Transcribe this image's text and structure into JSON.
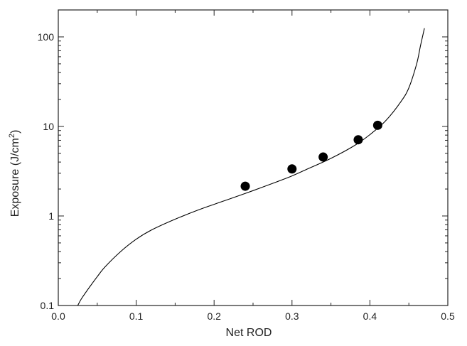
{
  "chart_data": {
    "type": "scatter",
    "xlabel": "Net ROD",
    "ylabel": {
      "prefix": "Exposure (J/cm",
      "superscript": "2",
      "suffix": ")"
    },
    "xlim": [
      0.0,
      0.5
    ],
    "ylim": [
      0.1,
      200
    ],
    "y_scale": "log",
    "x_ticks": [
      "0.0",
      "0.1",
      "0.2",
      "0.3",
      "0.4",
      "0.5"
    ],
    "y_ticks": [
      "0.1",
      "1",
      "10",
      "100"
    ],
    "grid": false,
    "series": [
      {
        "kind": "points",
        "marker": "filled-circle",
        "x": [
          0.24,
          0.3,
          0.34,
          0.385,
          0.41
        ],
        "y": [
          2.15,
          3.35,
          4.55,
          7.1,
          10.3
        ]
      },
      {
        "kind": "fit-curve",
        "x": [
          0.025,
          0.03,
          0.04,
          0.05,
          0.06,
          0.08,
          0.1,
          0.12,
          0.15,
          0.18,
          0.2,
          0.22,
          0.25,
          0.28,
          0.3,
          0.32,
          0.35,
          0.38,
          0.4,
          0.42,
          0.44,
          0.45,
          0.46,
          0.465,
          0.47
        ],
        "y": [
          0.1,
          0.12,
          0.16,
          0.21,
          0.27,
          0.4,
          0.55,
          0.7,
          0.92,
          1.17,
          1.35,
          1.55,
          1.92,
          2.4,
          2.8,
          3.35,
          4.4,
          6.1,
          8.1,
          11.5,
          19,
          27,
          50,
          80,
          125
        ]
      }
    ],
    "colors": {
      "axis": "#222222",
      "curve": "#000000",
      "points": "#000000"
    }
  }
}
